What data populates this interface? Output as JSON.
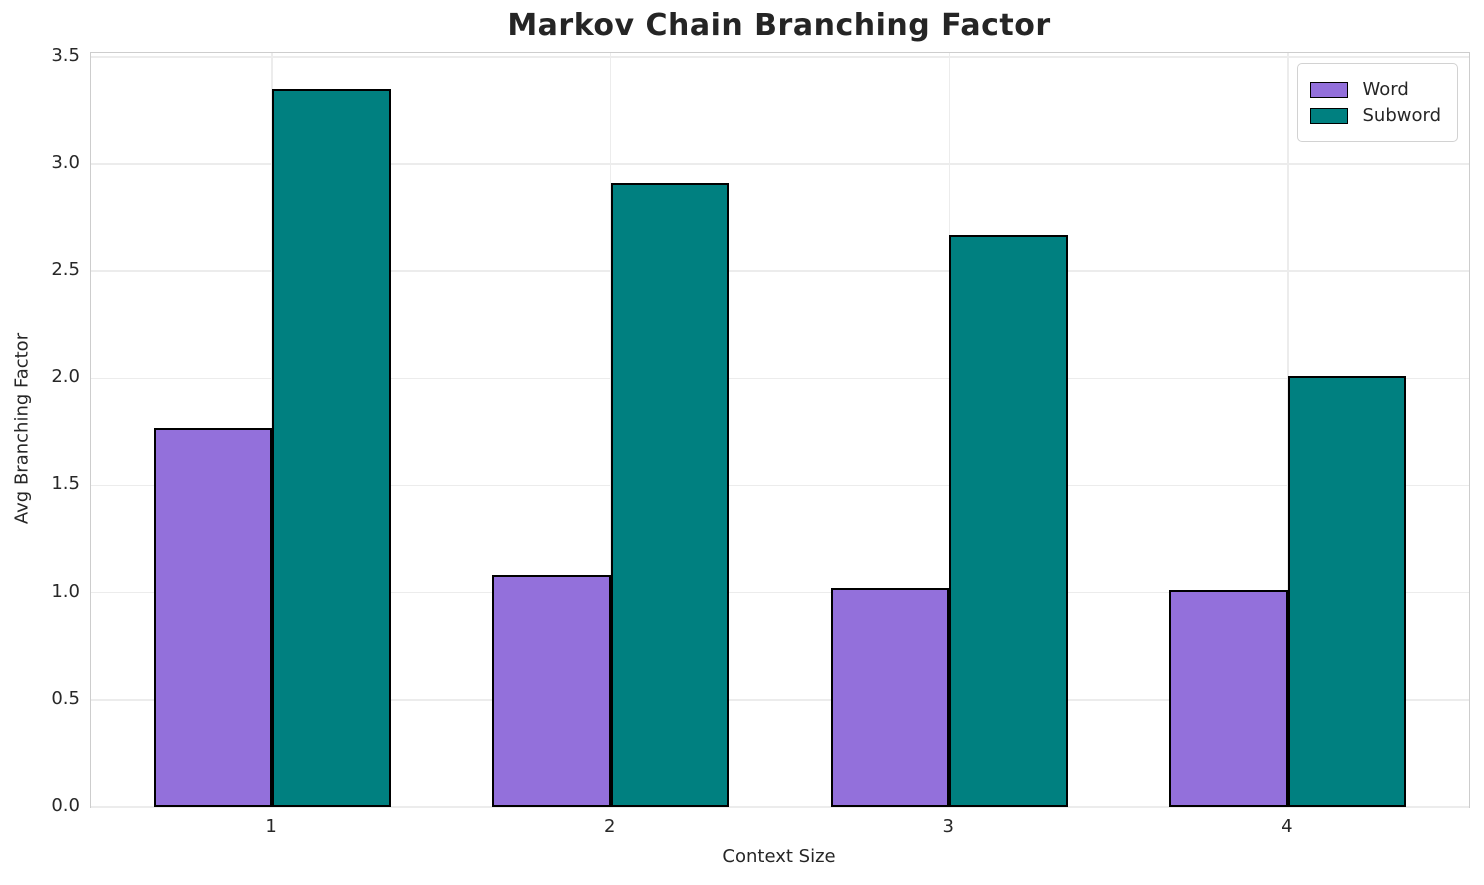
{
  "chart_data": {
    "type": "bar",
    "title": "Markov Chain Branching Factor",
    "xlabel": "Context Size",
    "ylabel": "Avg Branching Factor",
    "categories": [
      1,
      2,
      3,
      4
    ],
    "xtick_labels": [
      "1",
      "2",
      "3",
      "4"
    ],
    "series": [
      {
        "name": "Word",
        "color": "#9370DB",
        "values": [
          1.77,
          1.08,
          1.02,
          1.01
        ]
      },
      {
        "name": "Subword",
        "color": "#008080",
        "values": [
          3.35,
          2.91,
          2.67,
          2.01
        ]
      }
    ],
    "bar_edge_color": "#000000",
    "bar_width": 0.35,
    "ylim": [
      0,
      3.5175
    ],
    "xlim": [
      0.465,
      4.535
    ],
    "yticks": [
      0.0,
      0.5,
      1.0,
      1.5,
      2.0,
      2.5,
      3.0,
      3.5
    ],
    "ytick_labels": [
      "0.0",
      "0.5",
      "1.0",
      "1.5",
      "2.0",
      "2.5",
      "3.0",
      "3.5"
    ],
    "grid": "both",
    "grid_color": "#ececec",
    "spine_color": "#cdcdcd",
    "background_color": "#ffffff",
    "legend_position": "upper right"
  }
}
